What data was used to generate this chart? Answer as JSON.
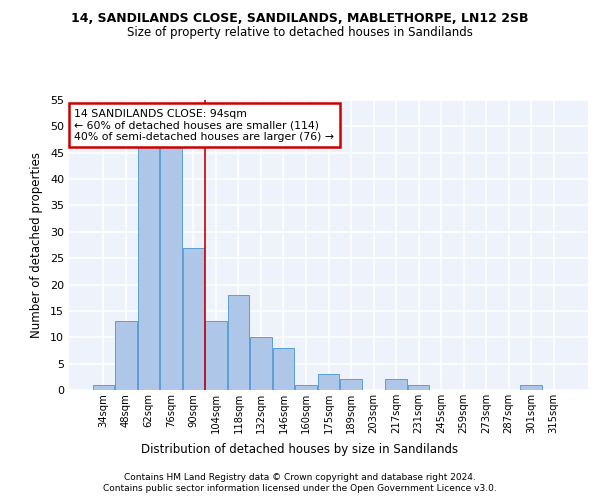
{
  "title1": "14, SANDILANDS CLOSE, SANDILANDS, MABLETHORPE, LN12 2SB",
  "title2": "Size of property relative to detached houses in Sandilands",
  "xlabel": "Distribution of detached houses by size in Sandilands",
  "ylabel": "Number of detached properties",
  "categories": [
    "34sqm",
    "48sqm",
    "62sqm",
    "76sqm",
    "90sqm",
    "104sqm",
    "118sqm",
    "132sqm",
    "146sqm",
    "160sqm",
    "175sqm",
    "189sqm",
    "203sqm",
    "217sqm",
    "231sqm",
    "245sqm",
    "259sqm",
    "273sqm",
    "287sqm",
    "301sqm",
    "315sqm"
  ],
  "values": [
    1,
    13,
    46,
    46,
    27,
    13,
    18,
    10,
    8,
    1,
    3,
    2,
    0,
    2,
    1,
    0,
    0,
    0,
    0,
    1,
    0
  ],
  "bar_color": "#aec6e8",
  "bar_edge_color": "#5a9fd4",
  "vline_color": "#cc0000",
  "annotation_text": "14 SANDILANDS CLOSE: 94sqm\n← 60% of detached houses are smaller (114)\n40% of semi-detached houses are larger (76) →",
  "annotation_box_color": "#cc0000",
  "ylim": [
    0,
    55
  ],
  "yticks": [
    0,
    5,
    10,
    15,
    20,
    25,
    30,
    35,
    40,
    45,
    50,
    55
  ],
  "footer1": "Contains HM Land Registry data © Crown copyright and database right 2024.",
  "footer2": "Contains public sector information licensed under the Open Government Licence v3.0.",
  "bg_color": "#eef2fa",
  "grid_color": "#ffffff"
}
